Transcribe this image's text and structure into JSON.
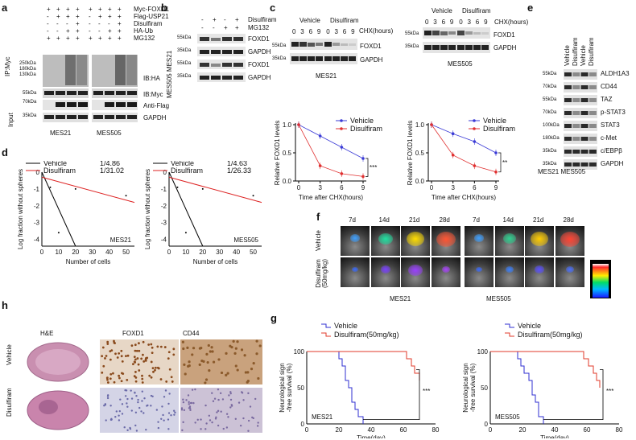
{
  "panels": [
    "a",
    "b",
    "c",
    "d",
    "e",
    "f",
    "g",
    "h"
  ],
  "a": {
    "conditions": [
      {
        "label": "Myc-FOXD1",
        "signs": [
          "+",
          "+",
          "+",
          "+",
          "+",
          "+",
          "+",
          "+"
        ]
      },
      {
        "label": "Flag-USP21",
        "signs": [
          "-",
          "+",
          "+",
          "+",
          "-",
          "+",
          "+",
          "+"
        ]
      },
      {
        "label": "Disulfiram",
        "signs": [
          "-",
          "-",
          "-",
          "+",
          "-",
          "-",
          "-",
          "+"
        ]
      },
      {
        "label": "HA-Ub",
        "signs": [
          "-",
          "-",
          "+",
          "+",
          "-",
          "-",
          "+",
          "+"
        ]
      },
      {
        "label": "MG132",
        "signs": [
          "+",
          "+",
          "+",
          "+",
          "+",
          "+",
          "+",
          "+"
        ]
      }
    ],
    "markers": [
      "250kDa",
      "180kDa",
      "130kDa",
      "55kDa",
      "70kDa",
      "35kDa"
    ],
    "blots": [
      "IB:HA",
      "IB:Myc",
      "Anti-Flag",
      "GAPDH"
    ],
    "side": [
      "IP:Myc",
      "Input"
    ],
    "cells": [
      "MES21",
      "MES505"
    ]
  },
  "b": {
    "conditions": [
      {
        "label": "Disulfiram",
        "signs": [
          "-",
          "+",
          "-",
          "+"
        ]
      },
      {
        "label": "MG132",
        "signs": [
          "-",
          "-",
          "+",
          "+"
        ]
      }
    ],
    "markers": [
      "55kDa",
      "35kDa",
      "55kDa",
      "35kDa"
    ],
    "blots": [
      "FOXD1",
      "GAPDH",
      "FOXD1",
      "GAPDH"
    ],
    "side": [
      "MES505",
      "MES21"
    ]
  },
  "c": {
    "vehicle": "Vehicle",
    "disulfiram": "Disulfiram",
    "cxh": "CHX(hours)",
    "times": [
      "0",
      "3",
      "6",
      "9",
      "0",
      "3",
      "6",
      "9"
    ],
    "markers": [
      "55kDa",
      "35kDa"
    ],
    "blots": [
      "FOXD1",
      "GAPDH"
    ],
    "cells": [
      "MES21",
      "MES505"
    ],
    "xlabel": "Time after CHX(hours)",
    "ylabel": "Relative FOXD1 levels",
    "sig": [
      "***",
      "**"
    ]
  },
  "d": {
    "legend1": {
      "vehicle": "1/4.86",
      "disulfiram": "1/31.02"
    },
    "legend2": {
      "vehicle": "1/4.63",
      "disulfiram": "1/26.33"
    },
    "vehicle": "Vehicle",
    "disulfiram": "Disulfiram",
    "xlabel": "Number of cells",
    "ylabel": "Log fraction without spheres",
    "cells": [
      "MES21",
      "MES505"
    ]
  },
  "e": {
    "columns": [
      "Vehicle",
      "Disulfiram",
      "Vehicle",
      "Disulfiram"
    ],
    "markers": [
      "55kDa",
      "70kDa",
      "55kDa",
      "70kDa",
      "100kDa",
      "180kDa",
      "35kDa",
      "35kDa"
    ],
    "blots": [
      "ALDH1A3",
      "CD44",
      "TAZ",
      "p-STAT3",
      "STAT3",
      "c-Met",
      "c/EBPβ",
      "GAPDH"
    ],
    "cells": "MES21 MES505"
  },
  "f": {
    "days": [
      "7d",
      "14d",
      "21d",
      "28d",
      "7d",
      "14d",
      "21d",
      "28d"
    ],
    "rows": [
      "Vehicle",
      "Disulfiram (50mg/kg)"
    ],
    "cells": [
      "MES21",
      "MES505"
    ]
  },
  "g": {
    "vehicle": "Vehicle",
    "disulfiram": "Disulfiram(50mg/kg)",
    "xlabel": "Time(day)",
    "ylabel1": "Neurological sign",
    "ylabel2": "-free survival (%)",
    "cells": [
      "MES21",
      "MES505"
    ],
    "sig": "***"
  },
  "h": {
    "columns": [
      "H&E",
      "FOXD1",
      "CD44"
    ],
    "rows": [
      "Vehicle",
      "Disulfiram"
    ]
  },
  "chart_data": [
    {
      "type": "line",
      "name": "c-MES21",
      "x": [
        0,
        3,
        6,
        9
      ],
      "series": [
        {
          "name": "Vehicle",
          "values": [
            1.0,
            0.8,
            0.6,
            0.4
          ]
        },
        {
          "name": "Disulfiram",
          "values": [
            1.0,
            0.27,
            0.13,
            0.08
          ]
        }
      ],
      "ylim": [
        0,
        1.0
      ],
      "xlabel": "Time after CHX(hours)",
      "ylabel": "Relative FOXD1 levels"
    },
    {
      "type": "line",
      "name": "c-MES505",
      "x": [
        0,
        3,
        6,
        9
      ],
      "series": [
        {
          "name": "Vehicle",
          "values": [
            1.0,
            0.84,
            0.7,
            0.5
          ]
        },
        {
          "name": "Disulfiram",
          "values": [
            1.0,
            0.46,
            0.27,
            0.16
          ]
        }
      ],
      "ylim": [
        0,
        1.0
      ],
      "xlabel": "Time after CHX(hours)",
      "ylabel": "Relative FOXD1 levels"
    },
    {
      "type": "line",
      "name": "g-MES21",
      "series": [
        {
          "name": "Vehicle",
          "x": [
            0,
            17,
            20,
            22,
            24,
            26,
            28,
            30,
            32,
            35
          ],
          "values": [
            100,
            100,
            90,
            80,
            60,
            50,
            30,
            20,
            10,
            0
          ]
        },
        {
          "name": "Disulfiram(50mg/kg)",
          "x": [
            0,
            60,
            62,
            65,
            67,
            70
          ],
          "values": [
            100,
            100,
            90,
            80,
            70,
            60
          ]
        }
      ],
      "xlim": [
        0,
        80
      ],
      "ylim": [
        0,
        100
      ],
      "xlabel": "Time(day)"
    },
    {
      "type": "line",
      "name": "g-MES505",
      "series": [
        {
          "name": "Vehicle",
          "x": [
            0,
            14,
            17,
            19,
            21,
            24,
            26,
            28,
            30,
            33
          ],
          "values": [
            100,
            100,
            90,
            80,
            70,
            60,
            40,
            30,
            10,
            0
          ]
        },
        {
          "name": "Disulfiram(50mg/kg)",
          "x": [
            0,
            55,
            58,
            61,
            64,
            66,
            68
          ],
          "values": [
            100,
            100,
            90,
            80,
            70,
            60,
            50
          ]
        }
      ],
      "xlim": [
        0,
        80
      ],
      "ylim": [
        0,
        100
      ],
      "xlabel": "Time(day)"
    }
  ]
}
